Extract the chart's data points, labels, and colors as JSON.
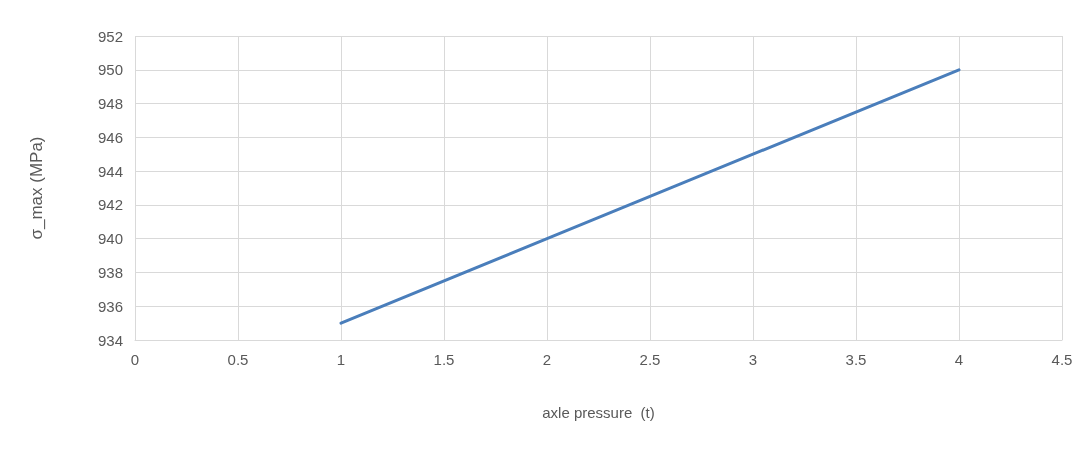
{
  "chart_data": {
    "type": "line",
    "xlabel": "axle pressure  (t)",
    "ylabel": "σ_max (MPa)",
    "x": [
      1,
      2,
      3,
      4
    ],
    "series": [
      {
        "color": "#4a7ebb",
        "values": [
          935,
          940,
          945,
          950
        ]
      }
    ],
    "xlim": [
      0,
      4.5
    ],
    "xticks": [
      0,
      0.5,
      1,
      1.5,
      2,
      2.5,
      3,
      3.5,
      4,
      4.5
    ],
    "ylim": [
      934,
      952
    ],
    "yticks": [
      934,
      936,
      938,
      940,
      942,
      944,
      946,
      948,
      950,
      952
    ],
    "grid": true,
    "marker": "none",
    "line_style": "solid"
  }
}
